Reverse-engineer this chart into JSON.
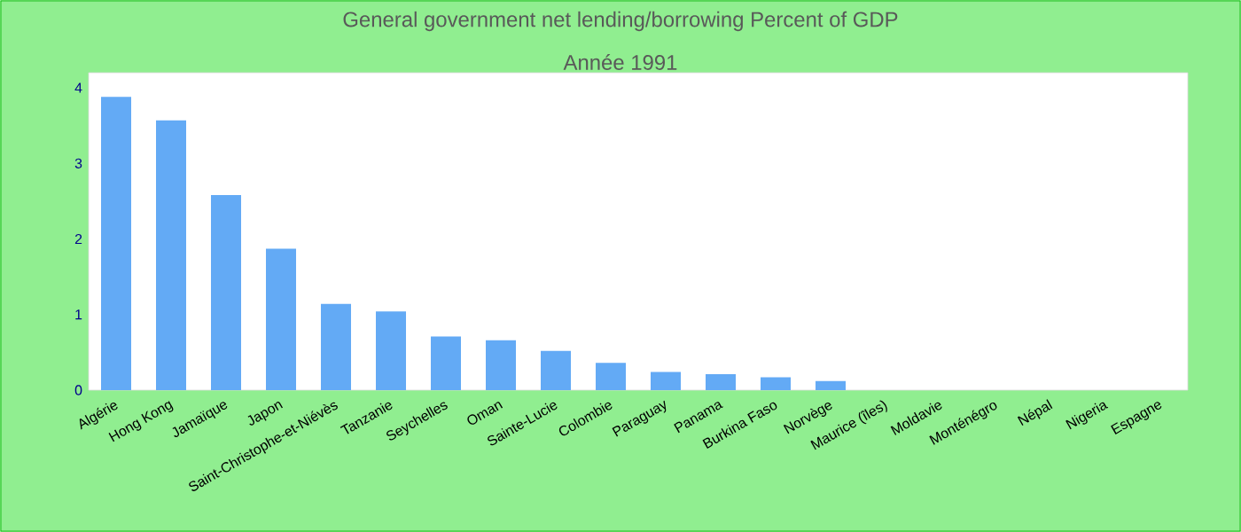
{
  "chart_data": {
    "type": "bar",
    "title": "General government net lending/borrowing  Percent of GDP",
    "subtitle": "Année 1991",
    "categories": [
      "Algérie",
      "Hong Kong",
      "Jamaïque",
      "Japon",
      "Saint-Christophe-et-Niévès",
      "Tanzanie",
      "Seychelles",
      "Oman",
      "Sainte-Lucie",
      "Colombie",
      "Paraguay",
      "Panama",
      "Burkina Faso",
      "Norvège",
      "Maurice (îles)",
      "Moldavie",
      "Monténégro",
      "Népal",
      "Nigeria",
      "Espagne"
    ],
    "values": [
      3.88,
      3.57,
      2.58,
      1.87,
      1.14,
      1.04,
      0.71,
      0.66,
      0.52,
      0.36,
      0.24,
      0.21,
      0.17,
      0.12,
      0,
      0,
      0,
      0,
      0,
      0
    ],
    "color": "#63aaf5",
    "ylim": [
      0,
      4.2
    ],
    "yticks": [
      0,
      1,
      2,
      3,
      4
    ]
  }
}
